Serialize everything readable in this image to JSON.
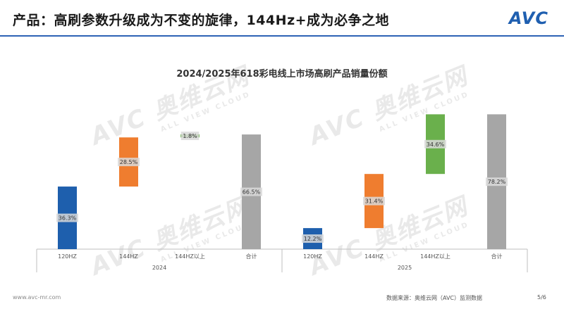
{
  "header": {
    "title": "产品：高刷参数升级成为不变的旋律，144Hz+成为必争之地",
    "logo": "AVC"
  },
  "watermark": {
    "main": "AVC 奥维云网",
    "sub": "ALL VIEW CLOUD"
  },
  "chart_data": {
    "type": "bar",
    "subtype": "waterfall",
    "title": "2024/2025年618彩电线上市场高刷产品销量份额",
    "xlabel": "",
    "ylabel": "",
    "ylim": [
      0,
      100
    ],
    "grid": false,
    "legend": "none",
    "groups": [
      {
        "name": "2024",
        "categories": [
          "120HZ",
          "144HZ",
          "144HZ以上",
          "合计"
        ],
        "values": [
          36.3,
          28.5,
          1.8,
          66.5
        ],
        "labels": [
          "36.3%",
          "28.5%",
          "1.8%",
          "66.5%"
        ],
        "colors": [
          "#1e5fad",
          "#ef7d2f",
          "#6ab04c",
          "#a6a6a6"
        ]
      },
      {
        "name": "2025",
        "categories": [
          "120HZ",
          "144HZ",
          "144HZ以上",
          "合计"
        ],
        "values": [
          12.2,
          31.4,
          34.6,
          78.2
        ],
        "labels": [
          "12.2%",
          "31.4%",
          "34.6%",
          "78.2%"
        ],
        "colors": [
          "#1e5fad",
          "#ef7d2f",
          "#6ab04c",
          "#a6a6a6"
        ]
      }
    ]
  },
  "footer": {
    "website": "www.avc-mr.com",
    "source": "数据来源：奥维云网（AVC）监测数据",
    "page": "5/6"
  }
}
